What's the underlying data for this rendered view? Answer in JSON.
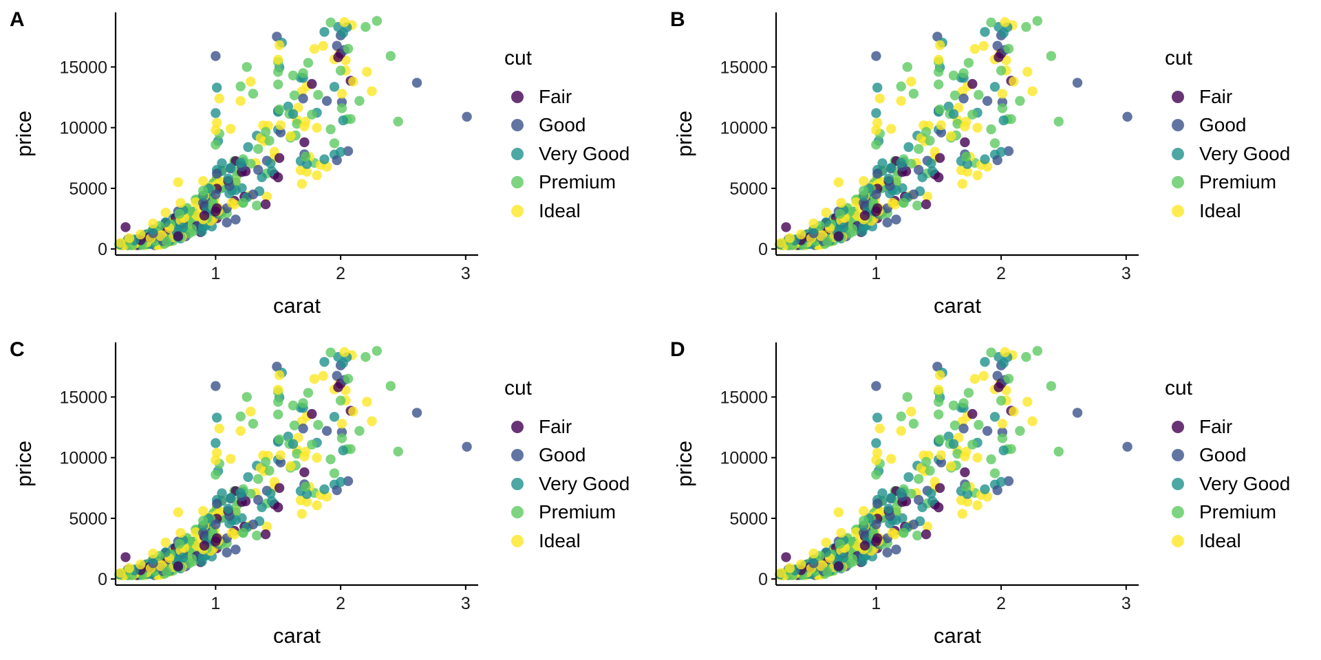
{
  "chart_data": [
    {
      "type": "scatter",
      "tag": "A",
      "xlabel": "carat",
      "ylabel": "price",
      "xlim": [
        0.2,
        3.1
      ],
      "ylim": [
        -500,
        19500
      ],
      "xticks": [
        1,
        2,
        3
      ],
      "yticks": [
        0,
        5000,
        10000,
        15000
      ],
      "grid": false,
      "legend": {
        "title": "cut",
        "placement": "right",
        "entries": [
          "Fair",
          "Good",
          "Very Good",
          "Premium",
          "Ideal"
        ]
      },
      "point_count": 500,
      "series": [
        {
          "name": "Fair",
          "color": "#440154",
          "x": [
            0.28,
            0.7,
            0.91,
            1.0,
            1.01,
            1.1,
            1.21,
            1.24,
            1.5,
            1.51,
            1.98,
            2.0,
            1.71
          ],
          "y": [
            1800,
            1050,
            2750,
            3100,
            3350,
            5600,
            6350,
            6400,
            5900,
            7500,
            15800,
            16100,
            8800
          ]
        },
        {
          "name": "Good",
          "color": "#3b528b",
          "x": [
            0.3,
            0.5,
            0.7,
            0.9,
            1.0,
            1.0,
            1.01,
            1.11,
            1.21,
            1.3,
            1.49,
            1.5,
            1.52,
            1.7,
            1.71,
            1.89,
            2.0,
            2.01,
            2.03,
            2.61,
            3.01
          ],
          "y": [
            800,
            1300,
            3100,
            3800,
            15900,
            4500,
            6200,
            5200,
            6800,
            4500,
            17500,
            11400,
            9600,
            12400,
            7800,
            12200,
            17600,
            12100,
            16400,
            13700,
            10900
          ]
        },
        {
          "name": "Very Good",
          "color": "#21918c",
          "x": [
            0.23,
            0.35,
            0.5,
            0.6,
            0.74,
            0.9,
            1.0,
            1.01,
            1.02,
            1.1,
            1.2,
            1.26,
            1.5,
            1.53,
            1.7,
            1.73,
            2.0,
            2.02
          ],
          "y": [
            400,
            700,
            1600,
            2200,
            3200,
            4400,
            11200,
            13300,
            8900,
            5800,
            7100,
            8400,
            11300,
            17000,
            14100,
            7000,
            8000,
            17800
          ]
        },
        {
          "name": "Premium",
          "color": "#5ec962",
          "x": [
            0.3,
            0.55,
            0.71,
            0.9,
            1.0,
            1.03,
            1.2,
            1.25,
            1.3,
            1.5,
            1.51,
            1.62,
            1.7,
            1.72,
            1.82,
            2.0,
            2.01,
            2.06,
            2.15,
            2.2,
            2.29,
            2.4,
            2.46
          ],
          "y": [
            700,
            1900,
            2900,
            4800,
            8600,
            9500,
            13400,
            15000,
            12800,
            14600,
            11500,
            14300,
            14500,
            7600,
            12700,
            14700,
            11600,
            16500,
            12200,
            18300,
            18800,
            15900,
            10500
          ]
        },
        {
          "name": "Ideal",
          "color": "#fde725",
          "x": [
            0.24,
            0.31,
            0.4,
            0.5,
            0.6,
            0.7,
            0.72,
            0.9,
            1.0,
            1.01,
            1.03,
            1.12,
            1.2,
            1.28,
            1.5,
            1.51,
            1.52,
            1.6,
            1.71,
            2.01,
            2.03,
            2.1,
            2.21,
            2.25
          ],
          "y": [
            500,
            900,
            1200,
            2100,
            3000,
            5500,
            3800,
            5600,
            9800,
            10400,
            12400,
            9900,
            12200,
            13800,
            15600,
            16800,
            10200,
            9300,
            10100,
            12800,
            18700,
            13800,
            14600,
            13000
          ]
        }
      ]
    },
    {
      "type": "scatter",
      "tag": "B",
      "xlabel": "carat",
      "ylabel": "price",
      "xlim": [
        0.2,
        3.1
      ],
      "ylim": [
        -500,
        19500
      ],
      "xticks": [
        1,
        2,
        3
      ],
      "yticks": [
        0,
        5000,
        10000,
        15000
      ],
      "grid": false,
      "legend": {
        "title": "cut",
        "placement": "right",
        "entries": [
          "Fair",
          "Good",
          "Very Good",
          "Premium",
          "Ideal"
        ]
      },
      "point_count": 500,
      "series": [
        {
          "name": "Fair",
          "color": "#440154",
          "x": [
            0.28,
            0.7,
            0.91,
            1.0,
            1.01,
            1.1,
            1.21,
            1.24,
            1.5,
            1.51,
            1.98,
            2.0,
            1.71
          ],
          "y": [
            1800,
            1050,
            2750,
            3100,
            3350,
            5600,
            6350,
            6400,
            5900,
            7500,
            15800,
            16100,
            8800
          ]
        },
        {
          "name": "Good",
          "color": "#3b528b",
          "x": [
            0.3,
            0.5,
            0.7,
            0.9,
            1.0,
            1.0,
            1.01,
            1.11,
            1.21,
            1.3,
            1.49,
            1.5,
            1.52,
            1.7,
            1.71,
            1.89,
            2.0,
            2.01,
            2.03,
            2.61,
            3.01
          ],
          "y": [
            800,
            1300,
            3100,
            3800,
            15900,
            4500,
            6200,
            5200,
            6800,
            4500,
            17500,
            11400,
            9600,
            12400,
            7800,
            12200,
            17600,
            12100,
            16400,
            13700,
            10900
          ]
        },
        {
          "name": "Very Good",
          "color": "#21918c",
          "x": [
            0.23,
            0.35,
            0.5,
            0.6,
            0.74,
            0.9,
            1.0,
            1.01,
            1.02,
            1.1,
            1.2,
            1.26,
            1.5,
            1.53,
            1.7,
            1.73,
            2.0,
            2.02
          ],
          "y": [
            400,
            700,
            1600,
            2200,
            3200,
            4400,
            11200,
            13300,
            8900,
            5800,
            7100,
            8400,
            11300,
            17000,
            14100,
            7000,
            8000,
            17800
          ]
        },
        {
          "name": "Premium",
          "color": "#5ec962",
          "x": [
            0.3,
            0.55,
            0.71,
            0.9,
            1.0,
            1.03,
            1.2,
            1.25,
            1.3,
            1.5,
            1.51,
            1.62,
            1.7,
            1.72,
            1.82,
            2.0,
            2.01,
            2.06,
            2.15,
            2.2,
            2.29,
            2.4,
            2.46
          ],
          "y": [
            700,
            1900,
            2900,
            4800,
            8600,
            9500,
            13400,
            15000,
            12800,
            14600,
            11500,
            14300,
            14500,
            7600,
            12700,
            14700,
            11600,
            16500,
            12200,
            18300,
            18800,
            15900,
            10500
          ]
        },
        {
          "name": "Ideal",
          "color": "#fde725",
          "x": [
            0.24,
            0.31,
            0.4,
            0.5,
            0.6,
            0.7,
            0.72,
            0.9,
            1.0,
            1.01,
            1.03,
            1.12,
            1.2,
            1.28,
            1.5,
            1.51,
            1.52,
            1.6,
            1.71,
            2.01,
            2.03,
            2.1,
            2.21,
            2.25
          ],
          "y": [
            500,
            900,
            1200,
            2100,
            3000,
            5500,
            3800,
            5600,
            9800,
            10400,
            12400,
            9900,
            12200,
            13800,
            15600,
            16800,
            10200,
            9300,
            10100,
            12800,
            18700,
            13800,
            14600,
            13000
          ]
        }
      ]
    },
    {
      "type": "scatter",
      "tag": "C",
      "xlabel": "carat",
      "ylabel": "price",
      "xlim": [
        0.2,
        3.1
      ],
      "ylim": [
        -500,
        19500
      ],
      "xticks": [
        1,
        2,
        3
      ],
      "yticks": [
        0,
        5000,
        10000,
        15000
      ],
      "grid": false,
      "legend": {
        "title": "cut",
        "placement": "right",
        "entries": [
          "Fair",
          "Good",
          "Very Good",
          "Premium",
          "Ideal"
        ]
      },
      "point_count": 500,
      "series": [
        {
          "name": "Fair",
          "color": "#440154",
          "x": [
            0.28,
            0.7,
            0.91,
            1.0,
            1.01,
            1.1,
            1.21,
            1.24,
            1.5,
            1.51,
            1.98,
            2.0,
            1.71
          ],
          "y": [
            1800,
            1050,
            2750,
            3100,
            3350,
            5600,
            6350,
            6400,
            5900,
            7500,
            15800,
            16100,
            8800
          ]
        },
        {
          "name": "Good",
          "color": "#3b528b",
          "x": [
            0.3,
            0.5,
            0.7,
            0.9,
            1.0,
            1.0,
            1.01,
            1.11,
            1.21,
            1.3,
            1.49,
            1.5,
            1.52,
            1.7,
            1.71,
            1.89,
            2.0,
            2.01,
            2.03,
            2.61,
            3.01
          ],
          "y": [
            800,
            1300,
            3100,
            3800,
            15900,
            4500,
            6200,
            5200,
            6800,
            4500,
            17500,
            11400,
            9600,
            12400,
            7800,
            12200,
            17600,
            12100,
            16400,
            13700,
            10900
          ]
        },
        {
          "name": "Very Good",
          "color": "#21918c",
          "x": [
            0.23,
            0.35,
            0.5,
            0.6,
            0.74,
            0.9,
            1.0,
            1.01,
            1.02,
            1.1,
            1.2,
            1.26,
            1.5,
            1.53,
            1.7,
            1.73,
            2.0,
            2.02
          ],
          "y": [
            400,
            700,
            1600,
            2200,
            3200,
            4400,
            11200,
            13300,
            8900,
            5800,
            7100,
            8400,
            11300,
            17000,
            14100,
            7000,
            8000,
            17800
          ]
        },
        {
          "name": "Premium",
          "color": "#5ec962",
          "x": [
            0.3,
            0.55,
            0.71,
            0.9,
            1.0,
            1.03,
            1.2,
            1.25,
            1.3,
            1.5,
            1.51,
            1.62,
            1.7,
            1.72,
            1.82,
            2.0,
            2.01,
            2.06,
            2.15,
            2.2,
            2.29,
            2.4,
            2.46
          ],
          "y": [
            700,
            1900,
            2900,
            4800,
            8600,
            9500,
            13400,
            15000,
            12800,
            14600,
            11500,
            14300,
            14500,
            7600,
            12700,
            14700,
            11600,
            16500,
            12200,
            18300,
            18800,
            15900,
            10500
          ]
        },
        {
          "name": "Ideal",
          "color": "#fde725",
          "x": [
            0.24,
            0.31,
            0.4,
            0.5,
            0.6,
            0.7,
            0.72,
            0.9,
            1.0,
            1.01,
            1.03,
            1.12,
            1.2,
            1.28,
            1.5,
            1.51,
            1.52,
            1.6,
            1.71,
            2.01,
            2.03,
            2.1,
            2.21,
            2.25
          ],
          "y": [
            500,
            900,
            1200,
            2100,
            3000,
            5500,
            3800,
            5600,
            9800,
            10400,
            12400,
            9900,
            12200,
            13800,
            15600,
            16800,
            10200,
            9300,
            10100,
            12800,
            18700,
            13800,
            14600,
            13000
          ]
        }
      ]
    },
    {
      "type": "scatter",
      "tag": "D",
      "xlabel": "carat",
      "ylabel": "price",
      "xlim": [
        0.2,
        3.1
      ],
      "ylim": [
        -500,
        19500
      ],
      "xticks": [
        1,
        2,
        3
      ],
      "yticks": [
        0,
        5000,
        10000,
        15000
      ],
      "grid": false,
      "legend": {
        "title": "cut",
        "placement": "right",
        "entries": [
          "Fair",
          "Good",
          "Very Good",
          "Premium",
          "Ideal"
        ]
      },
      "point_count": 500,
      "series": [
        {
          "name": "Fair",
          "color": "#440154",
          "x": [
            0.28,
            0.7,
            0.91,
            1.0,
            1.01,
            1.1,
            1.21,
            1.24,
            1.5,
            1.51,
            1.98,
            2.0,
            1.71
          ],
          "y": [
            1800,
            1050,
            2750,
            3100,
            3350,
            5600,
            6350,
            6400,
            5900,
            7500,
            15800,
            16100,
            8800
          ]
        },
        {
          "name": "Good",
          "color": "#3b528b",
          "x": [
            0.3,
            0.5,
            0.7,
            0.9,
            1.0,
            1.0,
            1.01,
            1.11,
            1.21,
            1.3,
            1.49,
            1.5,
            1.52,
            1.7,
            1.71,
            1.89,
            2.0,
            2.01,
            2.03,
            2.61,
            3.01
          ],
          "y": [
            800,
            1300,
            3100,
            3800,
            15900,
            4500,
            6200,
            5200,
            6800,
            4500,
            17500,
            11400,
            9600,
            12400,
            7800,
            12200,
            17600,
            12100,
            16400,
            13700,
            10900
          ]
        },
        {
          "name": "Very Good",
          "color": "#21918c",
          "x": [
            0.23,
            0.35,
            0.5,
            0.6,
            0.74,
            0.9,
            1.0,
            1.01,
            1.02,
            1.1,
            1.2,
            1.26,
            1.5,
            1.53,
            1.7,
            1.73,
            2.0,
            2.02
          ],
          "y": [
            400,
            700,
            1600,
            2200,
            3200,
            4400,
            11200,
            13300,
            8900,
            5800,
            7100,
            8400,
            11300,
            17000,
            14100,
            7000,
            8000,
            17800
          ]
        },
        {
          "name": "Premium",
          "color": "#5ec962",
          "x": [
            0.3,
            0.55,
            0.71,
            0.9,
            1.0,
            1.03,
            1.2,
            1.25,
            1.3,
            1.5,
            1.51,
            1.62,
            1.7,
            1.72,
            1.82,
            2.0,
            2.01,
            2.06,
            2.15,
            2.2,
            2.29,
            2.4,
            2.46
          ],
          "y": [
            700,
            1900,
            2900,
            4800,
            8600,
            9500,
            13400,
            15000,
            12800,
            14600,
            11500,
            14300,
            14500,
            7600,
            12700,
            14700,
            11600,
            16500,
            12200,
            18300,
            18800,
            15900,
            10500
          ]
        },
        {
          "name": "Ideal",
          "color": "#fde725",
          "x": [
            0.24,
            0.31,
            0.4,
            0.5,
            0.6,
            0.7,
            0.72,
            0.9,
            1.0,
            1.01,
            1.03,
            1.12,
            1.2,
            1.28,
            1.5,
            1.51,
            1.52,
            1.6,
            1.71,
            2.01,
            2.03,
            2.1,
            2.21,
            2.25
          ],
          "y": [
            500,
            900,
            1200,
            2100,
            3000,
            5500,
            3800,
            5600,
            9800,
            10400,
            12400,
            9900,
            12200,
            13800,
            15600,
            16800,
            10200,
            9300,
            10100,
            12800,
            18700,
            13800,
            14600,
            13000
          ]
        }
      ]
    }
  ]
}
